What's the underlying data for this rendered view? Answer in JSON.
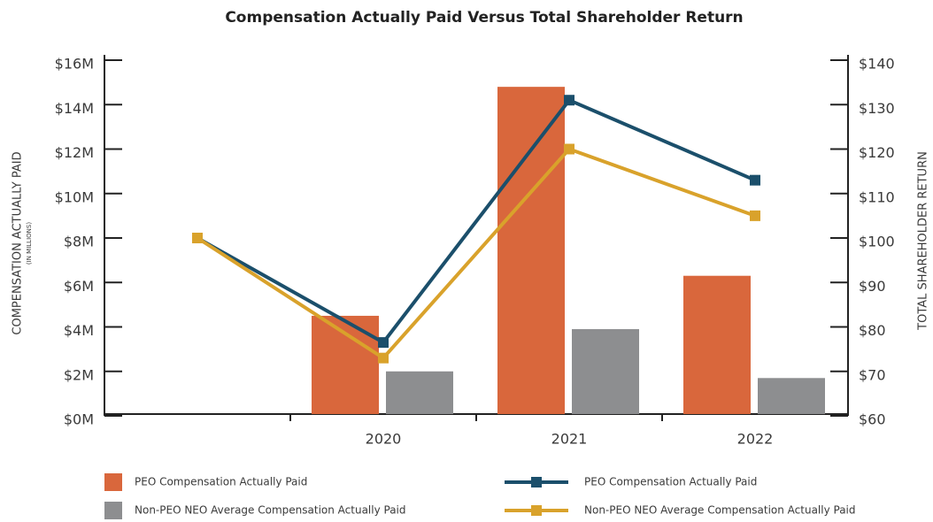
{
  "chart_data": {
    "type": "bar",
    "title": "Compensation Actually Paid Versus Total Shareholder Return",
    "ylabel": "COMPENSATION ACTUALLY PAID",
    "ylabel_note": "(IN MILLIONS)",
    "y2label": "TOTAL SHAREHOLDER RETURN",
    "categories": [
      null,
      "2020",
      "2021",
      "2022"
    ],
    "series": [
      {
        "name": "PEO Compensation Actually Paid",
        "type": "bar",
        "color": "#d9673c",
        "values": [
          null,
          4.5,
          14.8,
          6.3
        ]
      },
      {
        "name": "Non-PEO NEO Average Compensation Actually Paid",
        "type": "bar",
        "color": "#8d8e90",
        "values": [
          null,
          2.0,
          3.9,
          1.7
        ]
      },
      {
        "name": "PEO Compensation Actually Paid",
        "type": "line",
        "axis": "y2",
        "color": "#1b4f6b",
        "values": [
          100,
          76.5,
          131,
          113
        ]
      },
      {
        "name": "Non-PEO NEO Average Compensation Actually Paid",
        "type": "line",
        "axis": "y2",
        "color": "#d9a22b",
        "values": [
          100,
          73,
          120,
          105
        ]
      }
    ],
    "ylim": [
      0,
      16
    ],
    "yticks": [
      {
        "value": 0,
        "label": "$0M"
      },
      {
        "value": 2,
        "label": "$2M"
      },
      {
        "value": 4,
        "label": "$4M"
      },
      {
        "value": 6,
        "label": "$6M"
      },
      {
        "value": 8,
        "label": "$8M"
      },
      {
        "value": 10,
        "label": "$10M"
      },
      {
        "value": 12,
        "label": "$12M"
      },
      {
        "value": 14,
        "label": "$14M"
      },
      {
        "value": 16,
        "label": "$16M"
      }
    ],
    "y2lim": [
      60,
      140
    ],
    "y2ticks": [
      {
        "value": 60,
        "label": "$60"
      },
      {
        "value": 70,
        "label": "$70"
      },
      {
        "value": 80,
        "label": "$80"
      },
      {
        "value": 90,
        "label": "$90"
      },
      {
        "value": 100,
        "label": "$100"
      },
      {
        "value": 110,
        "label": "$110"
      },
      {
        "value": 120,
        "label": "$120"
      },
      {
        "value": 130,
        "label": "$130"
      },
      {
        "value": 140,
        "label": "$140"
      }
    ],
    "grid": false
  }
}
